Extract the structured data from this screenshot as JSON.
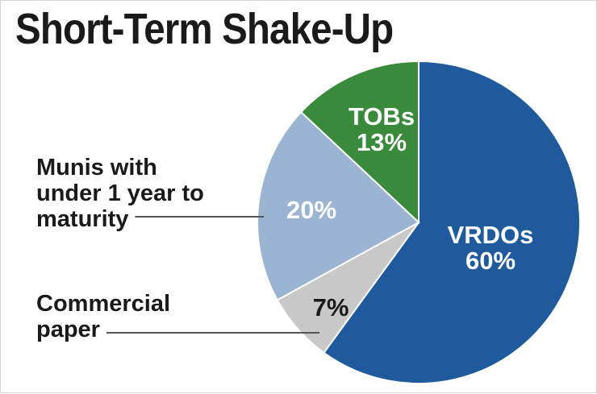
{
  "chart_data": {
    "type": "pie",
    "title": "Short-Term Shake-Up",
    "slices": [
      {
        "name": "VRDOs",
        "value": 60,
        "label": "60%",
        "color": "#1f5b9c",
        "text_color": "#ffffff"
      },
      {
        "name": "Commercial paper",
        "value": 7,
        "label": "7%",
        "color": "#c8c8c8",
        "text_color": "#1a1a1a"
      },
      {
        "name": "Munis with under 1 year to maturity",
        "value": 20,
        "label": "20%",
        "color": "#9ab4d2",
        "text_color": "#ffffff"
      },
      {
        "name": "TOBs",
        "value": 13,
        "label": "13%",
        "color": "#3a8a3c",
        "text_color": "#ffffff"
      }
    ],
    "callouts": [
      {
        "slice": "Munis with under 1 year to maturity",
        "lines": [
          "Munis with",
          "under 1 year to",
          "maturity"
        ]
      },
      {
        "slice": "Commercial paper",
        "lines": [
          "Commercial",
          "paper"
        ]
      }
    ],
    "inner_labels": [
      {
        "slice": "VRDOs",
        "lines": [
          "VRDOs",
          "60%"
        ]
      },
      {
        "slice": "TOBs",
        "lines": [
          "TOBs",
          "13%"
        ]
      },
      {
        "slice": "Munis with under 1 year to maturity",
        "lines": [
          "20%"
        ]
      },
      {
        "slice": "Commercial paper",
        "lines": [
          "7%"
        ]
      }
    ]
  }
}
